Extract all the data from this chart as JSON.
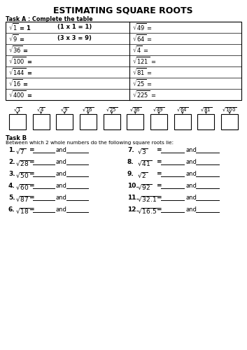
{
  "title": "ESTIMATING SQUARE ROOTS",
  "task_a_label": "Task A : Complete the table",
  "table_left_exprs": [
    "$\\sqrt{1}$ = 1",
    "$\\sqrt{9}$ =",
    "$\\sqrt{36}$ =",
    "$\\sqrt{100}$ =",
    "$\\sqrt{144}$ =",
    "$\\sqrt{16}$ =",
    "$\\sqrt{400}$ ="
  ],
  "table_left_hints": [
    "(1 x 1 = 1)",
    "(3 x 3 = 9)",
    "",
    "",
    "",
    "",
    ""
  ],
  "table_right_exprs": [
    "$\\sqrt{49}$ =",
    "$\\sqrt{64}$ =",
    "$\\sqrt{4}$ =",
    "$\\sqrt{121}$ =",
    "$\\sqrt{81}$ =",
    "$\\sqrt{25}$ =",
    "$\\sqrt{225}$ ="
  ],
  "number_line_labels": [
    "$\\sqrt{1}$",
    "$\\sqrt{4}$ $\\sqrt{9}$",
    "$\\sqrt{16}$",
    "$\\sqrt{25}$",
    "$\\sqrt{36}$",
    "$\\sqrt{49}$",
    "$\\sqrt{64}$",
    "$\\sqrt{81}$ $\\sqrt{100}$"
  ],
  "nl_single": [
    "$\\sqrt{1}$",
    "$\\sqrt{4}$",
    "$\\sqrt{9}$",
    "$\\sqrt{16}$",
    "$\\sqrt{25}$",
    "$\\sqrt{36}$",
    "$\\sqrt{49}$",
    "$\\sqrt{64}$",
    "$\\sqrt{81}$",
    "$\\sqrt{100}$"
  ],
  "task_b_label": "Task B",
  "task_b_desc": "Between which 2 whole numbers do the following square roots lie:",
  "task_b_left_nums": [
    "1.",
    "2.",
    "3.",
    "4.",
    "5.",
    "6."
  ],
  "task_b_left_exprs": [
    "$\\sqrt{7}$",
    "$\\sqrt{28}$",
    "$\\sqrt{50}$",
    "$\\sqrt{60}$",
    "$\\sqrt{87}$",
    "$\\sqrt{18}$"
  ],
  "task_b_right_nums": [
    "7.",
    "8.",
    "9.",
    "10.",
    "11.",
    "12."
  ],
  "task_b_right_exprs": [
    "$\\sqrt{3}$",
    "$\\sqrt{41}$",
    "$\\sqrt{2}$",
    "$\\sqrt{92}$",
    "$\\sqrt{32.1}$",
    "$\\sqrt{16.5}$"
  ],
  "bg_color": "#ffffff"
}
